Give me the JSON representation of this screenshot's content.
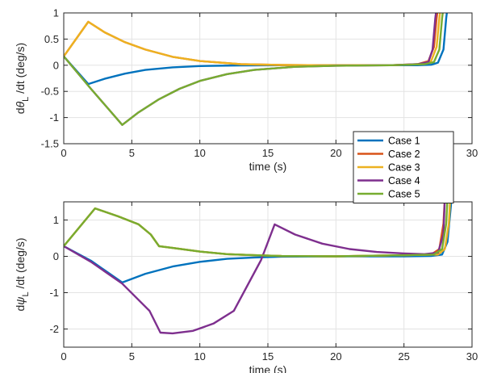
{
  "chart_data": [
    {
      "type": "line",
      "title": "",
      "xlabel": "time (s)",
      "ylabel_parts": [
        "d",
        "θ",
        "L",
        " /dt (deg/s)"
      ],
      "xlim": [
        0,
        30
      ],
      "ylim": [
        -1.5,
        1
      ],
      "xticks": [
        0,
        5,
        10,
        15,
        20,
        25,
        30
      ],
      "yticks": [
        -1.5,
        -1,
        -0.5,
        0,
        0.5,
        1
      ],
      "ytick_labels": [
        "-1.5",
        "-1",
        "-0.5",
        "0",
        "0.5",
        "1"
      ],
      "grid": true,
      "series": [
        {
          "name": "Case 1",
          "color": "#0072BD",
          "points": [
            [
              0,
              0.17
            ],
            [
              1.8,
              -0.36
            ],
            [
              3,
              -0.26
            ],
            [
              4.5,
              -0.16
            ],
            [
              6,
              -0.09
            ],
            [
              8,
              -0.04
            ],
            [
              10,
              -0.015
            ],
            [
              13,
              -0.003
            ],
            [
              16,
              0
            ],
            [
              20,
              0
            ],
            [
              24,
              0
            ],
            [
              26,
              0
            ],
            [
              27,
              0.01
            ],
            [
              27.5,
              0.05
            ],
            [
              27.9,
              0.3
            ],
            [
              28.1,
              0.9
            ],
            [
              28.2,
              1.1
            ]
          ]
        },
        {
          "name": "Case 2",
          "color": "#D95319",
          "points": [
            [
              0,
              0.17
            ],
            [
              1.8,
              0.83
            ],
            [
              3,
              0.63
            ],
            [
              4.5,
              0.44
            ],
            [
              6,
              0.3
            ],
            [
              8,
              0.16
            ],
            [
              10,
              0.08
            ],
            [
              13,
              0.02
            ],
            [
              16,
              0.005
            ],
            [
              20,
              0
            ],
            [
              24,
              0
            ],
            [
              26,
              0.02
            ],
            [
              26.8,
              0.08
            ],
            [
              27.2,
              0.35
            ],
            [
              27.4,
              0.9
            ],
            [
              27.5,
              1.1
            ]
          ]
        },
        {
          "name": "Case 3",
          "color": "#EDB120",
          "points": [
            [
              0,
              0.17
            ],
            [
              1.8,
              0.83
            ],
            [
              3,
              0.63
            ],
            [
              4.5,
              0.44
            ],
            [
              6,
              0.3
            ],
            [
              8,
              0.16
            ],
            [
              10,
              0.08
            ],
            [
              13,
              0.02
            ],
            [
              16,
              0.005
            ],
            [
              20,
              0
            ],
            [
              24,
              0
            ],
            [
              26.2,
              0.02
            ],
            [
              27,
              0.08
            ],
            [
              27.4,
              0.35
            ],
            [
              27.6,
              0.9
            ],
            [
              27.7,
              1.1
            ]
          ]
        },
        {
          "name": "Case 4",
          "color": "#7E2F8E",
          "points": [
            [
              0,
              0.17
            ],
            [
              2,
              -0.45
            ],
            [
              4.3,
              -1.14
            ],
            [
              5.5,
              -0.9
            ],
            [
              7,
              -0.65
            ],
            [
              8.5,
              -0.45
            ],
            [
              10,
              -0.3
            ],
            [
              12,
              -0.17
            ],
            [
              14,
              -0.09
            ],
            [
              17,
              -0.03
            ],
            [
              20,
              -0.01
            ],
            [
              24,
              0
            ],
            [
              26,
              0.02
            ],
            [
              26.8,
              0.06
            ],
            [
              27.1,
              0.3
            ],
            [
              27.3,
              0.9
            ],
            [
              27.4,
              1.1
            ]
          ]
        },
        {
          "name": "Case 5",
          "color": "#77AC30",
          "points": [
            [
              0,
              0.17
            ],
            [
              2,
              -0.45
            ],
            [
              4.3,
              -1.14
            ],
            [
              5.5,
              -0.9
            ],
            [
              7,
              -0.65
            ],
            [
              8.5,
              -0.45
            ],
            [
              10,
              -0.3
            ],
            [
              12,
              -0.17
            ],
            [
              14,
              -0.09
            ],
            [
              17,
              -0.03
            ],
            [
              20,
              -0.01
            ],
            [
              24,
              0
            ],
            [
              26.5,
              0.02
            ],
            [
              27.2,
              0.06
            ],
            [
              27.6,
              0.3
            ],
            [
              27.8,
              0.9
            ],
            [
              27.9,
              1.1
            ]
          ]
        }
      ]
    },
    {
      "type": "line",
      "title": "",
      "xlabel": "time (s)",
      "ylabel_parts": [
        "d",
        "ψ",
        "L",
        " /dt (deg/s)"
      ],
      "xlim": [
        0,
        30
      ],
      "ylim": [
        -2.5,
        1.5
      ],
      "xticks": [
        0,
        5,
        10,
        15,
        20,
        25,
        30
      ],
      "yticks": [
        -2,
        -1,
        0,
        1
      ],
      "ytick_labels": [
        "-2",
        "-1",
        "0",
        "1"
      ],
      "grid": true,
      "series": [
        {
          "name": "Case 1",
          "color": "#0072BD",
          "points": [
            [
              0,
              0.28
            ],
            [
              2,
              -0.12
            ],
            [
              4.3,
              -0.72
            ],
            [
              6,
              -0.48
            ],
            [
              8,
              -0.28
            ],
            [
              10,
              -0.15
            ],
            [
              12,
              -0.07
            ],
            [
              14,
              -0.03
            ],
            [
              16,
              -0.01
            ],
            [
              20,
              0
            ],
            [
              25,
              0
            ],
            [
              27,
              0.01
            ],
            [
              27.8,
              0.05
            ],
            [
              28.2,
              0.4
            ],
            [
              28.4,
              1.2
            ],
            [
              28.5,
              1.6
            ]
          ]
        },
        {
          "name": "Case 2",
          "color": "#D95319",
          "points": [
            [
              0,
              0.28
            ],
            [
              2.3,
              1.32
            ],
            [
              4,
              1.1
            ],
            [
              5.5,
              0.88
            ],
            [
              6.4,
              0.6
            ],
            [
              7,
              0.28
            ],
            [
              8,
              0.23
            ],
            [
              10,
              0.13
            ],
            [
              12,
              0.06
            ],
            [
              14,
              0.03
            ],
            [
              16,
              0.01
            ],
            [
              20,
              0
            ],
            [
              25,
              0.03
            ],
            [
              27,
              0.05
            ],
            [
              27.6,
              0.2
            ],
            [
              27.9,
              0.9
            ],
            [
              28,
              1.6
            ]
          ]
        },
        {
          "name": "Case 3",
          "color": "#EDB120",
          "points": [
            [
              0,
              0.28
            ],
            [
              2.3,
              1.32
            ],
            [
              4,
              1.1
            ],
            [
              5.5,
              0.88
            ],
            [
              6.4,
              0.6
            ],
            [
              7,
              0.28
            ],
            [
              8,
              0.23
            ],
            [
              10,
              0.13
            ],
            [
              12,
              0.06
            ],
            [
              14,
              0.03
            ],
            [
              16,
              0.01
            ],
            [
              20,
              0
            ],
            [
              25,
              0.03
            ],
            [
              27.5,
              0.05
            ],
            [
              28,
              0.2
            ],
            [
              28.3,
              0.9
            ],
            [
              28.4,
              1.6
            ]
          ]
        },
        {
          "name": "Case 4",
          "color": "#7E2F8E",
          "points": [
            [
              0,
              0.28
            ],
            [
              2,
              -0.15
            ],
            [
              4.3,
              -0.75
            ],
            [
              6.3,
              -1.5
            ],
            [
              7.1,
              -2.1
            ],
            [
              8,
              -2.12
            ],
            [
              9.5,
              -2.05
            ],
            [
              11,
              -1.85
            ],
            [
              12.5,
              -1.5
            ],
            [
              13.5,
              -0.8
            ],
            [
              14.5,
              -0.1
            ],
            [
              15.5,
              0.88
            ],
            [
              17,
              0.6
            ],
            [
              19,
              0.35
            ],
            [
              21,
              0.2
            ],
            [
              23,
              0.12
            ],
            [
              25,
              0.08
            ],
            [
              26.5,
              0.06
            ],
            [
              27.5,
              0.1
            ],
            [
              27.9,
              0.6
            ],
            [
              28,
              1.6
            ]
          ]
        },
        {
          "name": "Case 5",
          "color": "#77AC30",
          "points": [
            [
              0,
              0.28
            ],
            [
              2.3,
              1.32
            ],
            [
              4,
              1.1
            ],
            [
              5.5,
              0.88
            ],
            [
              6.4,
              0.6
            ],
            [
              7,
              0.28
            ],
            [
              8,
              0.23
            ],
            [
              10,
              0.13
            ],
            [
              12,
              0.06
            ],
            [
              14,
              0.03
            ],
            [
              16,
              0.01
            ],
            [
              20,
              0
            ],
            [
              25,
              0.03
            ],
            [
              27.2,
              0.05
            ],
            [
              27.8,
              0.2
            ],
            [
              28.1,
              0.9
            ],
            [
              28.2,
              1.6
            ]
          ]
        }
      ]
    }
  ],
  "legend": {
    "placement": "right, between the two panels",
    "entries": [
      "Case 1",
      "Case 2",
      "Case 3",
      "Case 4",
      "Case 5"
    ],
    "colors": [
      "#0072BD",
      "#D95319",
      "#EDB120",
      "#7E2F8E",
      "#77AC30"
    ]
  }
}
